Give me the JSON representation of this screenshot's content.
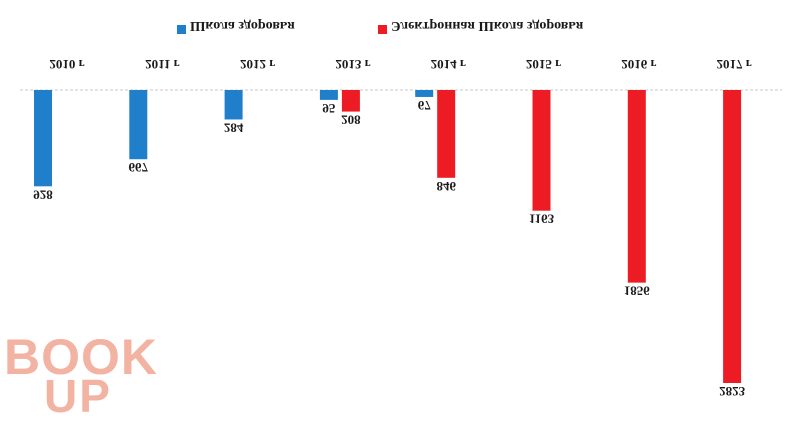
{
  "legend": [
    {
      "label": "Школа здоровья",
      "color": "#1f7fcb",
      "icon": "blue-square-marker"
    },
    {
      "label": "Электронная Школа здоровья",
      "color": "#ed1c24",
      "icon": "red-square-marker"
    }
  ],
  "watermark": {
    "line1": "BOOK",
    "line2": "UP",
    "color": "#f3b3a2"
  },
  "chart_data": {
    "type": "bar",
    "flipped_vertically": true,
    "grid": false,
    "legend_position": "top",
    "categories": [
      "2010 г",
      "2011 г",
      "2012 г",
      "2013 г",
      "2014 г",
      "2015 г",
      "2016 г",
      "2017 г"
    ],
    "series": [
      {
        "name": "Школа здоровья",
        "color": "#1f7fcb",
        "values": [
          928,
          667,
          284,
          95,
          67,
          null,
          null,
          null
        ]
      },
      {
        "name": "Электронная Школа здоровья",
        "color": "#ed1c24",
        "values": [
          null,
          null,
          null,
          208,
          846,
          1163,
          1856,
          2823
        ]
      }
    ]
  }
}
